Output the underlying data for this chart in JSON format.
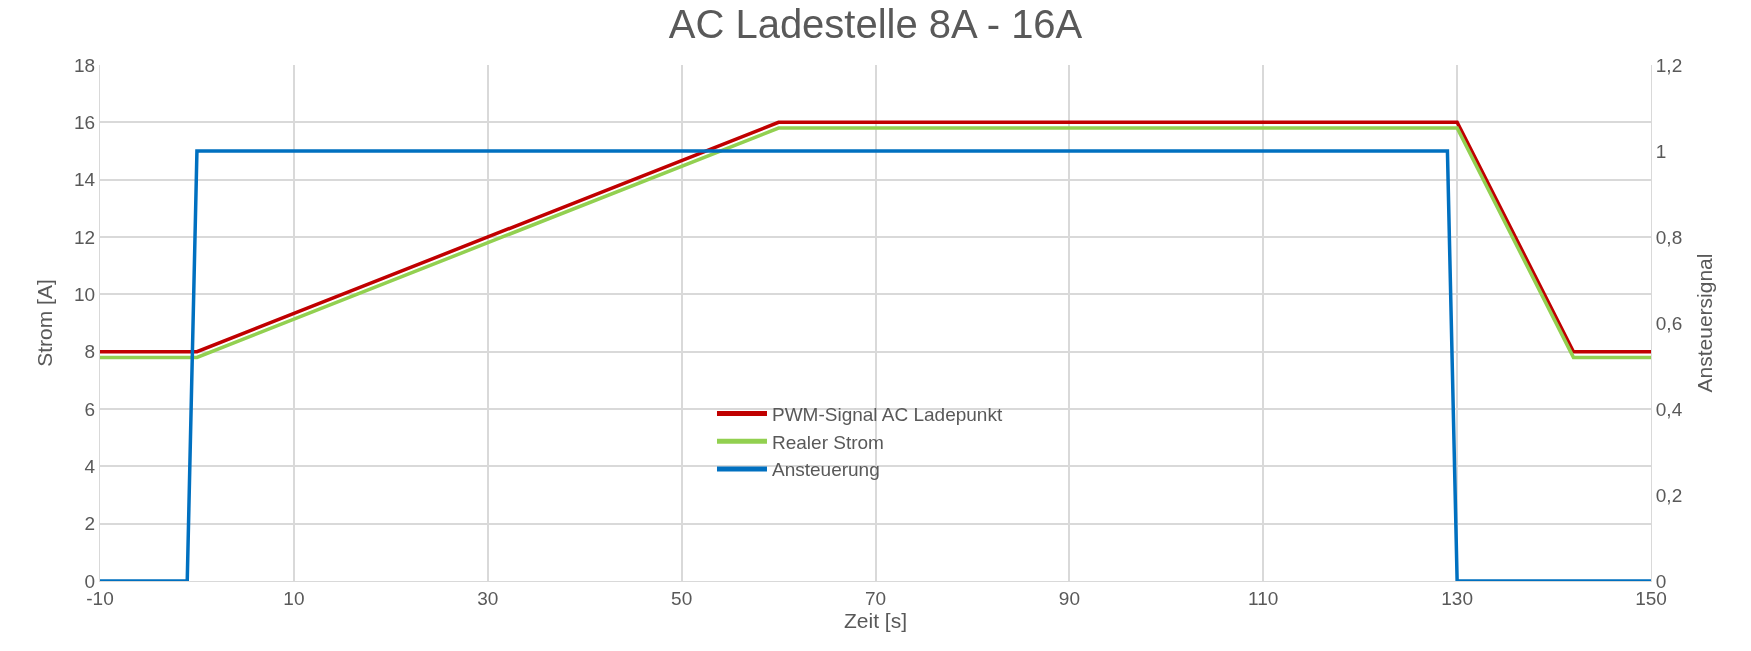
{
  "chart_data": {
    "type": "line",
    "title": "AC Ladestelle 8A - 16A",
    "xlabel": "Zeit [s]",
    "ylabel": "Strom [A]",
    "y2label": "Ansteuersignal",
    "xlim": [
      -10,
      150
    ],
    "xticks": [
      -10,
      10,
      30,
      50,
      70,
      90,
      110,
      130,
      150
    ],
    "ylim": [
      0,
      18
    ],
    "yticks": [
      0,
      2,
      4,
      6,
      8,
      10,
      12,
      14,
      16,
      18
    ],
    "y2lim": [
      0,
      1.2
    ],
    "y2ticks": [
      0,
      {
        "value": 0.2,
        "label": "0,2"
      },
      {
        "value": 0.4,
        "label": "0,4"
      },
      {
        "value": 0.6,
        "label": "0,6"
      },
      {
        "value": 0.8,
        "label": "0,8"
      },
      1,
      {
        "value": 1.2,
        "label": "1,2"
      }
    ],
    "grid": true,
    "legend": "center",
    "marker": "none",
    "line_style": "solid",
    "series": [
      {
        "name": "PWM-Signal AC Ladepunkt",
        "color": "#c00000",
        "x": [
          -10,
          0,
          60,
          130,
          142,
          150
        ],
        "values": [
          8,
          8,
          16,
          16,
          8,
          8
        ]
      },
      {
        "name": "Realer Strom",
        "color": "#92d050",
        "x": [
          -10,
          0,
          60,
          130,
          142,
          150
        ],
        "values": [
          7.8,
          7.8,
          15.8,
          15.8,
          7.8,
          7.8
        ]
      },
      {
        "name": "Ansteuerung",
        "color": "#0070c0",
        "axis": "y2",
        "x": [
          -10,
          -1,
          0,
          129,
          130,
          150
        ],
        "values": [
          0,
          0,
          1,
          1,
          0,
          0
        ]
      }
    ]
  }
}
